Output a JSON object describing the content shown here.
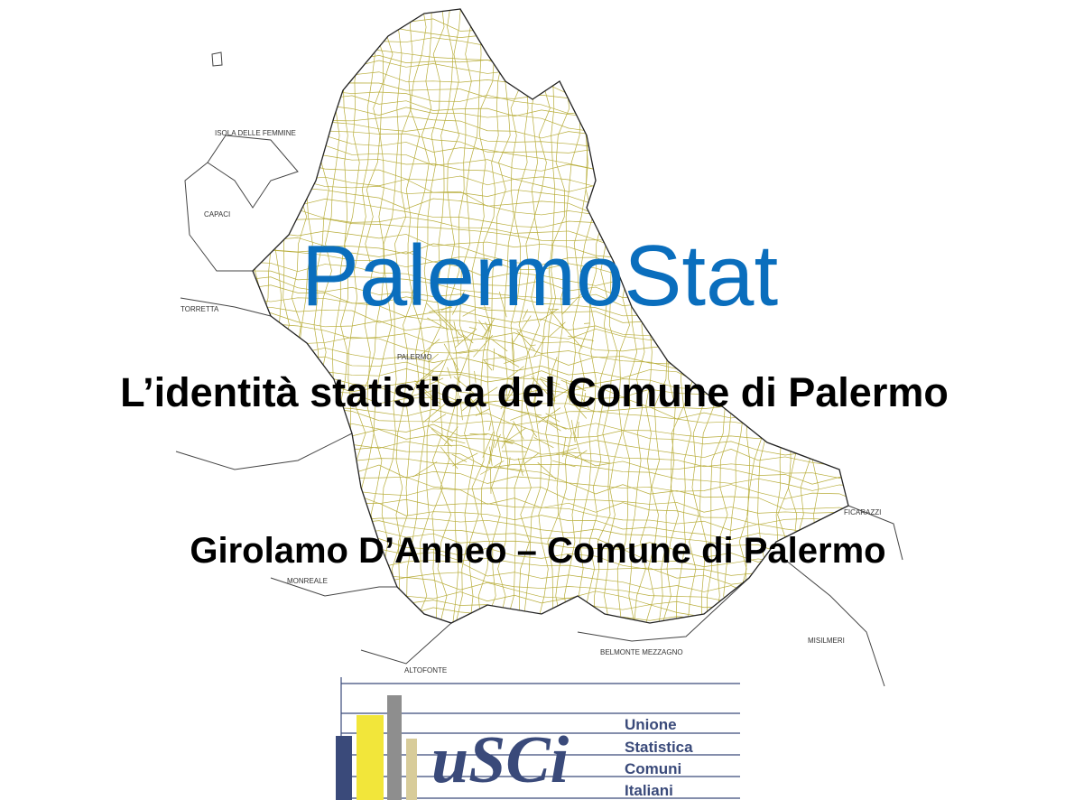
{
  "header": {
    "title": "PalermoStat",
    "subtitle": "L’identità statistica del Comune di Palermo",
    "author": "Girolamo D’Anneo – Comune di Palermo"
  },
  "map": {
    "labels": [
      "ISOLA DELLE FEMMINE",
      "CAPACI",
      "TORRETTA",
      "PALERMO",
      "FICARAZZI",
      "MONREALE",
      "MISILMERI",
      "BELMONTE MEZZAGNO",
      "ALTOFONTE"
    ]
  },
  "logo": {
    "mark": "uSCi",
    "lines": [
      "Unione",
      "Statistica",
      "Comuni",
      "Italiani"
    ]
  }
}
